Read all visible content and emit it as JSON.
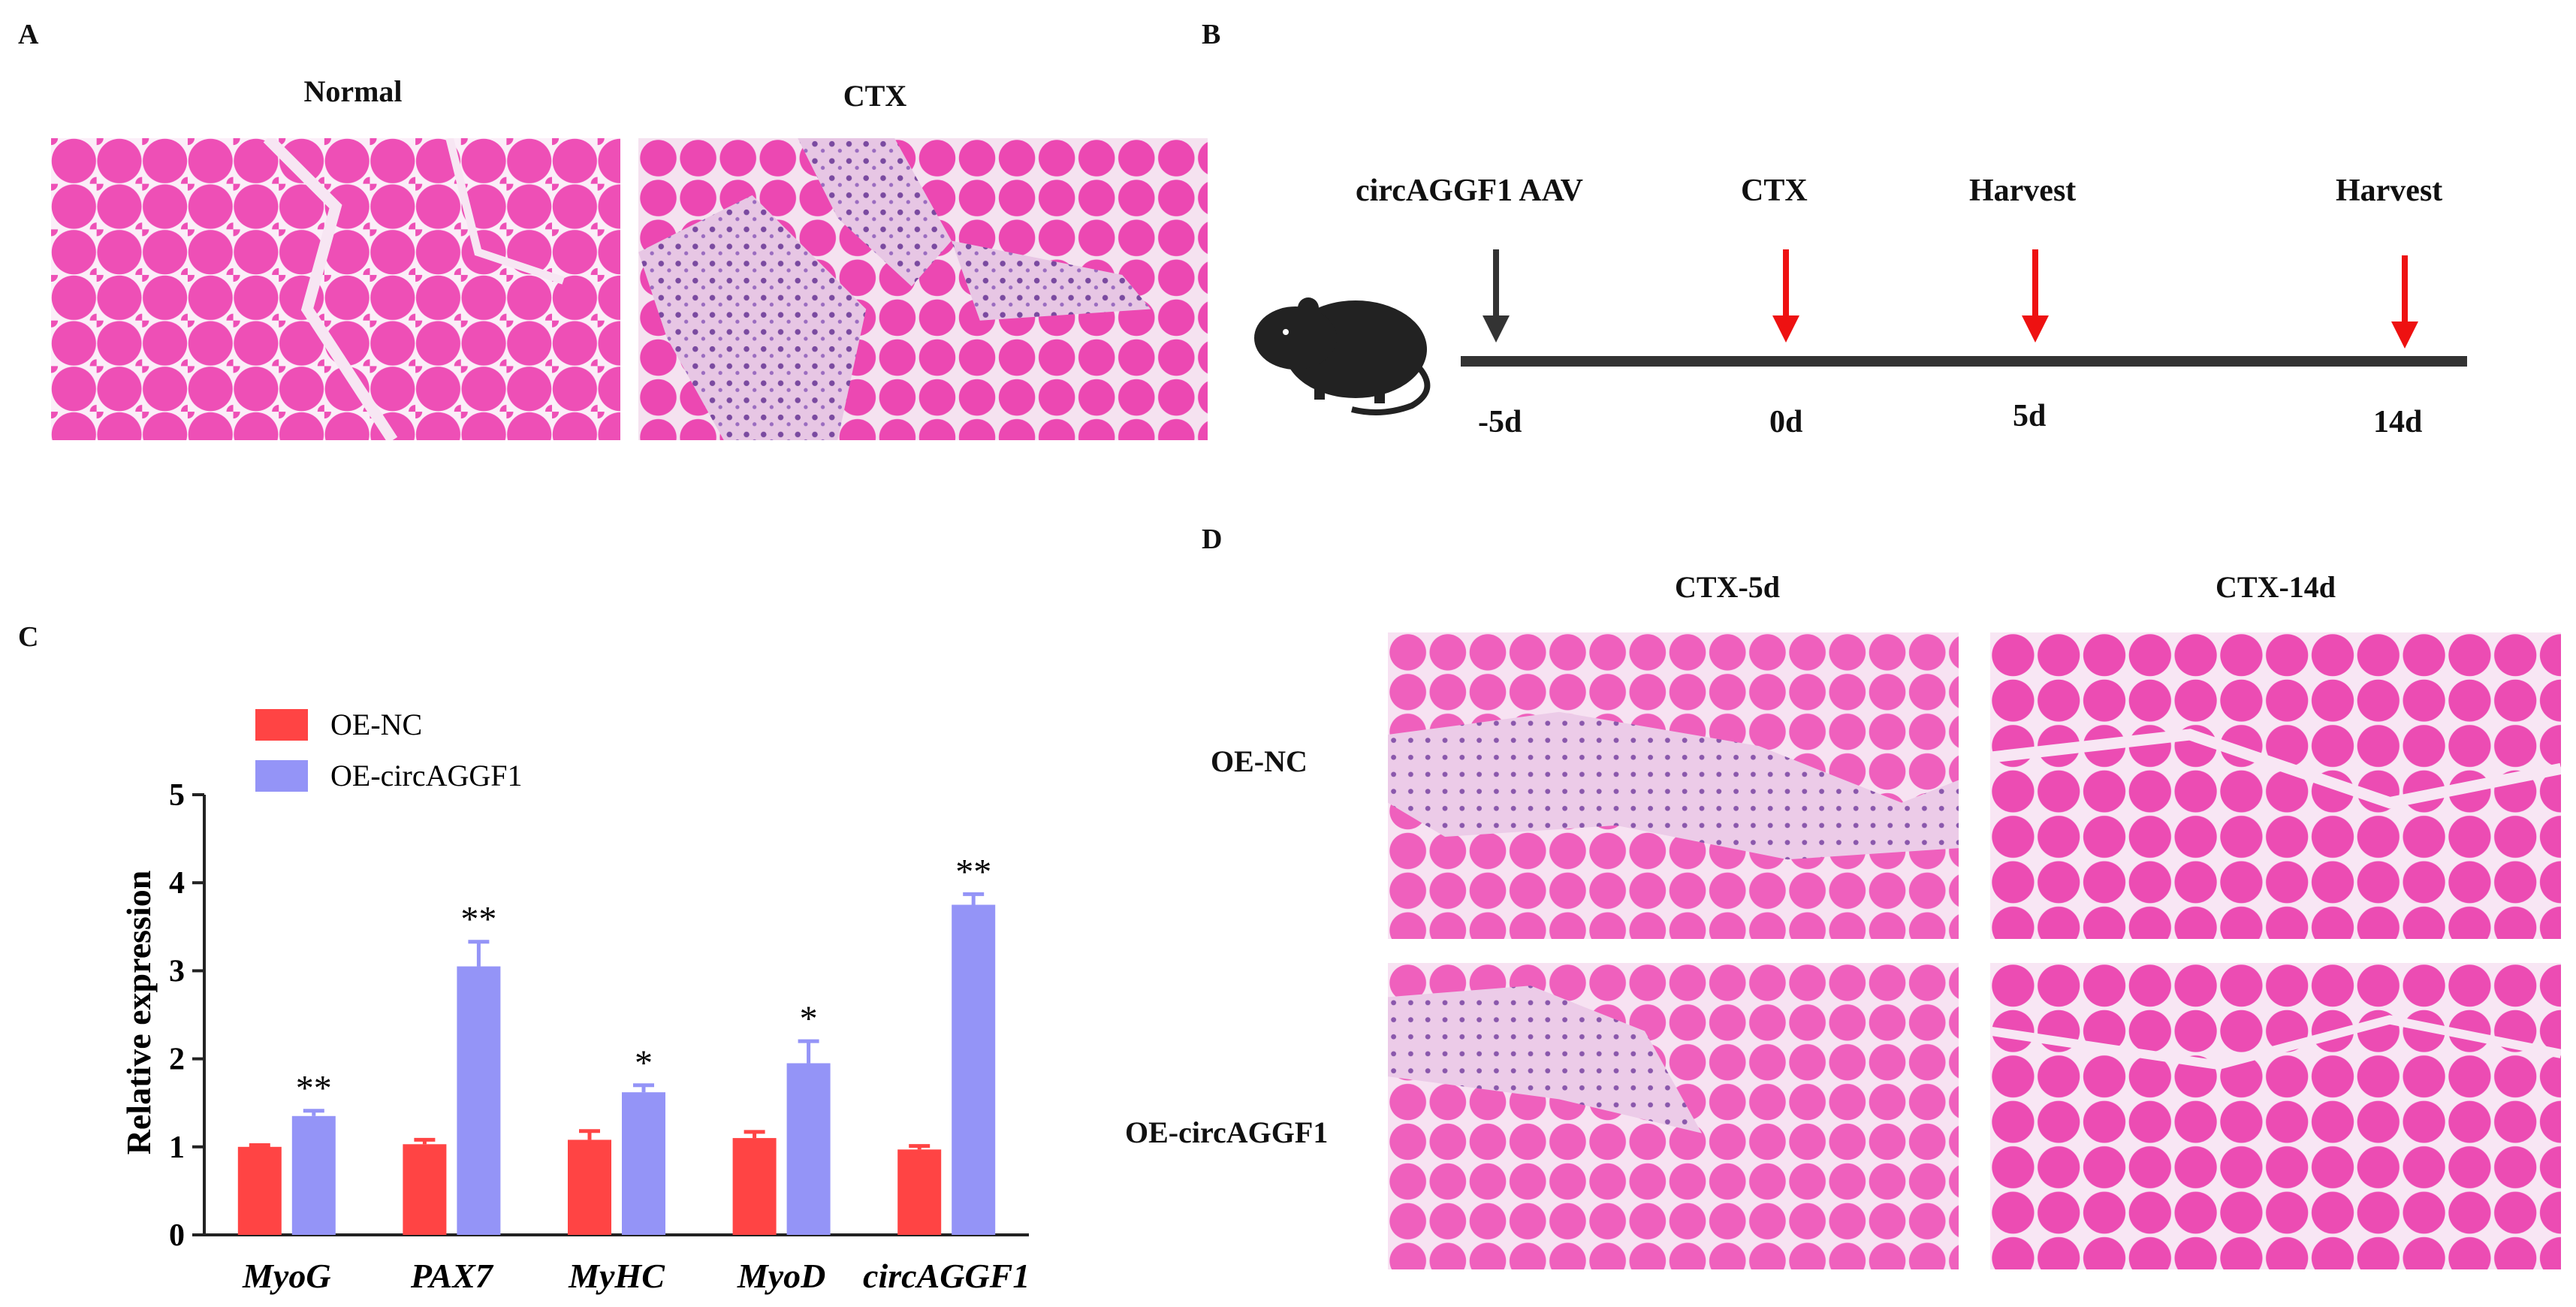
{
  "panels": {
    "A": {
      "letter": "A",
      "labels": [
        "Normal",
        "CTX"
      ]
    },
    "B": {
      "letter": "B",
      "events": [
        {
          "label": "circAGGF1 AAV",
          "day": "-5d",
          "arrow_color": "#333333"
        },
        {
          "label": "CTX",
          "day": "0d",
          "arrow_color": "#ee1111"
        },
        {
          "label": "Harvest",
          "day": "5d",
          "arrow_color": "#ee1111"
        },
        {
          "label": "Harvest",
          "day": "14d",
          "arrow_color": "#ee1111"
        }
      ]
    },
    "C": {
      "letter": "C"
    },
    "D": {
      "letter": "D",
      "col_labels": [
        "CTX-5d",
        "CTX-14d"
      ],
      "row_labels": [
        "OE-NC",
        "OE-circAGGF1"
      ]
    }
  },
  "chart_data": {
    "type": "bar",
    "categories": [
      "MyoG",
      "PAX7",
      "MyHC",
      "MyoD",
      "circAGGF1"
    ],
    "ylabel": "Relative expression",
    "xlabel": "",
    "ylim": [
      0,
      5
    ],
    "yticks": [
      "0",
      "1",
      "2",
      "3",
      "4",
      "5"
    ],
    "legend_position": "top-left",
    "series": [
      {
        "name": "OE-NC",
        "color": "#ff4444",
        "values": [
          1.0,
          1.03,
          1.08,
          1.1,
          0.97
        ],
        "errors": [
          0.02,
          0.05,
          0.1,
          0.07,
          0.04
        ],
        "significance": [
          "",
          "",
          "",
          "",
          ""
        ]
      },
      {
        "name": "OE-circAGGF1",
        "color": "#9494f7",
        "values": [
          1.35,
          3.05,
          1.62,
          1.95,
          3.75
        ],
        "errors": [
          0.06,
          0.28,
          0.08,
          0.25,
          0.12
        ],
        "significance": [
          "**",
          "**",
          "*",
          "*",
          "**"
        ]
      }
    ]
  }
}
